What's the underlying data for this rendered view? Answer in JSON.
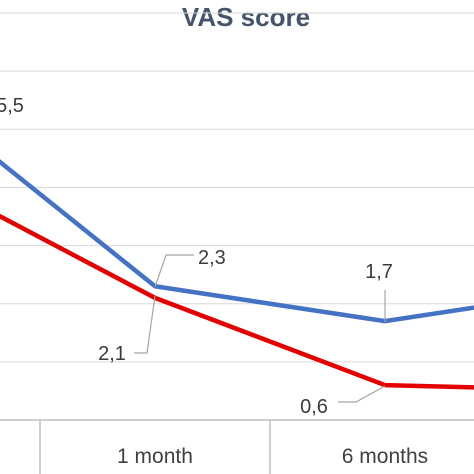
{
  "chart_data": {
    "type": "line",
    "title": "VAS score",
    "categories": [
      "",
      "1 month",
      "6 months",
      ""
    ],
    "visible_tick_labels": [
      "1 month",
      "6 months"
    ],
    "ylim": [
      0,
      7
    ],
    "grid": true,
    "series": [
      {
        "color": "#4472c4",
        "values": [
          5.5,
          2.3,
          1.7,
          2.3
        ]
      },
      {
        "color": "#e50000",
        "values": [
          4.2,
          2.1,
          0.6,
          0.5
        ]
      }
    ],
    "data_labels": [
      {
        "series": 0,
        "index": 0,
        "text": "5,5"
      },
      {
        "series": 0,
        "index": 1,
        "text": "2,3"
      },
      {
        "series": 0,
        "index": 2,
        "text": "1,7"
      },
      {
        "series": 1,
        "index": 1,
        "text": "2,1"
      },
      {
        "series": 1,
        "index": 2,
        "text": "0,6"
      }
    ]
  },
  "colors": {
    "title": "#44546a",
    "gridline": "#d9d9d9",
    "axis": "#bfbfbf"
  }
}
